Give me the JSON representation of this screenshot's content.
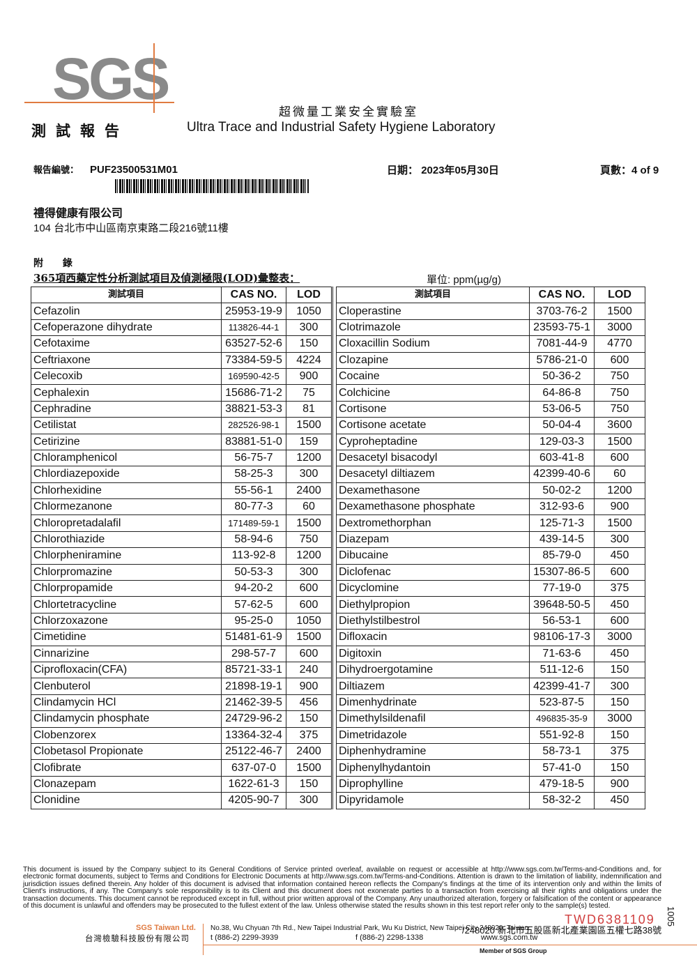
{
  "header": {
    "logo": "SGS",
    "report_title": "測試報告",
    "lab_name_zh": "超微量工業安全實驗室",
    "lab_name_en": "Ultra Trace and Industrial Safety Hygiene Laboratory",
    "report_no_label": "報告編號：",
    "report_no": "PUF23500531M01",
    "date_label": "日期：",
    "date": "2023年05月30日",
    "page_label": "頁數：",
    "page": "4 of 9"
  },
  "client": {
    "name": "禮得健康有限公司",
    "address": "104 台北市中山區南京東路二段216號11樓"
  },
  "appendix": {
    "label": "附 錄",
    "title": "365項西藥定性分析測試項目及偵測極限(LOD)彙整表：",
    "unit": "單位: ppm(µg/g)"
  },
  "table": {
    "headers": [
      "測試項目",
      "CAS NO.",
      "LOD"
    ],
    "left": [
      [
        "Cefazolin",
        "25953-19-9",
        "1050"
      ],
      [
        "Cefoperazone dihydrate",
        "113826-44-1",
        "300"
      ],
      [
        "Cefotaxime",
        "63527-52-6",
        "150"
      ],
      [
        "Ceftriaxone",
        "73384-59-5",
        "4224"
      ],
      [
        "Celecoxib",
        "169590-42-5",
        "900"
      ],
      [
        "Cephalexin",
        "15686-71-2",
        "75"
      ],
      [
        "Cephradine",
        "38821-53-3",
        "81"
      ],
      [
        "Cetilistat",
        "282526-98-1",
        "1500"
      ],
      [
        "Cetirizine",
        "83881-51-0",
        "159"
      ],
      [
        "Chloramphenicol",
        "56-75-7",
        "1200"
      ],
      [
        "Chlordiazepoxide",
        "58-25-3",
        "300"
      ],
      [
        "Chlorhexidine",
        "55-56-1",
        "2400"
      ],
      [
        "Chlormezanone",
        "80-77-3",
        "60"
      ],
      [
        "Chloropretadalafil",
        "171489-59-1",
        "1500"
      ],
      [
        "Chlorothiazide",
        "58-94-6",
        "750"
      ],
      [
        "Chlorpheniramine",
        "113-92-8",
        "1200"
      ],
      [
        "Chlorpromazine",
        "50-53-3",
        "300"
      ],
      [
        "Chlorpropamide",
        "94-20-2",
        "600"
      ],
      [
        "Chlortetracycline",
        "57-62-5",
        "600"
      ],
      [
        "Chlorzoxazone",
        "95-25-0",
        "1050"
      ],
      [
        "Cimetidine",
        "51481-61-9",
        "1500"
      ],
      [
        "Cinnarizine",
        "298-57-7",
        "600"
      ],
      [
        "Ciprofloxacin(CFA)",
        "85721-33-1",
        "240"
      ],
      [
        "Clenbuterol",
        "21898-19-1",
        "900"
      ],
      [
        "Clindamycin HCl",
        "21462-39-5",
        "456"
      ],
      [
        "Clindamycin phosphate",
        "24729-96-2",
        "150"
      ],
      [
        "Clobenzorex",
        "13364-32-4",
        "375"
      ],
      [
        "Clobetasol Propionate",
        "25122-46-7",
        "2400"
      ],
      [
        "Clofibrate",
        "637-07-0",
        "1500"
      ],
      [
        "Clonazepam",
        "1622-61-3",
        "150"
      ],
      [
        "Clonidine",
        "4205-90-7",
        "300"
      ]
    ],
    "right": [
      [
        "Cloperastine",
        "3703-76-2",
        "1500"
      ],
      [
        "Clotrimazole",
        "23593-75-1",
        "3000"
      ],
      [
        "Cloxacillin Sodium",
        "7081-44-9",
        "4770"
      ],
      [
        "Clozapine",
        "5786-21-0",
        "600"
      ],
      [
        "Cocaine",
        "50-36-2",
        "750"
      ],
      [
        "Colchicine",
        "64-86-8",
        "750"
      ],
      [
        "Cortisone",
        "53-06-5",
        "750"
      ],
      [
        "Cortisone acetate",
        "50-04-4",
        "3600"
      ],
      [
        "Cyproheptadine",
        "129-03-3",
        "1500"
      ],
      [
        "Desacetyl bisacodyl",
        "603-41-8",
        "600"
      ],
      [
        "Desacetyl diltiazem",
        "42399-40-6",
        "60"
      ],
      [
        "Dexamethasone",
        "50-02-2",
        "1200"
      ],
      [
        "Dexamethasone phosphate",
        "312-93-6",
        "900"
      ],
      [
        "Dextromethorphan",
        "125-71-3",
        "1500"
      ],
      [
        "Diazepam",
        "439-14-5",
        "300"
      ],
      [
        "Dibucaine",
        "85-79-0",
        "450"
      ],
      [
        "Diclofenac",
        "15307-86-5",
        "600"
      ],
      [
        "Dicyclomine",
        "77-19-0",
        "375"
      ],
      [
        "Diethylpropion",
        "39648-50-5",
        "450"
      ],
      [
        "Diethylstilbestrol",
        "56-53-1",
        "600"
      ],
      [
        "Difloxacin",
        "98106-17-3",
        "3000"
      ],
      [
        "Digitoxin",
        "71-63-6",
        "450"
      ],
      [
        "Dihydroergotamine",
        "511-12-6",
        "150"
      ],
      [
        "Diltiazem",
        "42399-41-7",
        "300"
      ],
      [
        "Dimenhydrinate",
        "523-87-5",
        "150"
      ],
      [
        "Dimethylsildenafil",
        "496835-35-9",
        "3000"
      ],
      [
        "Dimetridazole",
        "551-92-8",
        "150"
      ],
      [
        "Diphenhydramine",
        "58-73-1",
        "375"
      ],
      [
        "Diphenylhydantoin",
        "57-41-0",
        "150"
      ],
      [
        "Diprophylline",
        "479-18-5",
        "900"
      ],
      [
        "Dipyridamole",
        "58-32-2",
        "450"
      ]
    ]
  },
  "footer": {
    "disclaimer_1": "This document is issued by the Company subject to its General Conditions of Service printed overleaf, available on request or accessible at ",
    "link_1": "http://www.sgs.com.tw/Terms-and-Conditions",
    "disclaimer_2": " and, for electronic format documents, subject to Terms and Conditions for Electronic Documents at ",
    "link_2": "http://www.sgs.com.tw/Terms-and-Conditions",
    "disclaimer_3": ". Attention is drawn to the limitation of liability, indemnification and jurisdiction issues defined therein. Any holder of this document is advised that information contained hereon reflects the Company's findings at the time of its intervention only and within the limits of Client's instructions, if any. The Company's sole responsibility is to its Client and this document does not exonerate parties to a transaction from exercising all their rights and obligations under the transaction documents. This document cannot be reproduced except in full, without prior written approval of the Company. Any unauthorized alteration, forgery or falsification of the content or appearance of this document is unlawful and offenders may be prosecuted to the fullest extent of the law. Unless otherwise stated the results shown in this test report refer only to the sample(s) tested.",
    "company_en": "SGS Taiwan Ltd.",
    "company_zh": "台灣檢驗科技股份有限公司",
    "address_en": "No.38, Wu Chyuan 7th Rd., New Taipei Industrial Park, Wu Ku District, New Taipei City 248020, Taiwan",
    "address_zh": "/248020 新北市五股區新北產業園區五權七路38號",
    "tel": "t (886-2) 2299-3939",
    "fax": "f (886-2) 2298-1338",
    "website": "www.sgs.com.tw",
    "member": "Member of SGS Group",
    "serial": "TWD6381109",
    "side_number": "1005"
  },
  "colors": {
    "accent": "#e07a40",
    "logo": "#8a8a8a",
    "serial": "#d04040"
  }
}
